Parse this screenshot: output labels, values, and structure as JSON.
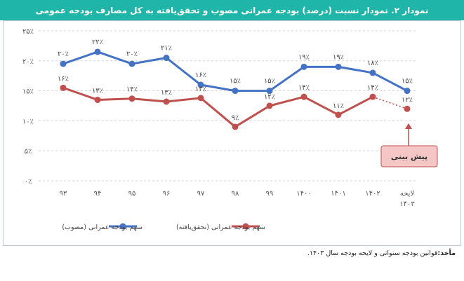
{
  "title": "نمودار ۲. نمودار نسبت (درصد) بودجه عمرانی مصوب و تحقق‌یافته به کل مصارف بودجه عمومی",
  "callout": "پیش بینی",
  "source": {
    "label": "مأخذ:",
    "text": "قوانین بودجه سنواتی و لایحه بودجه سال ۱۴۰۳."
  },
  "colors": {
    "approved": "#4472c4",
    "realized": "#c0504d",
    "header": "#1fb5a8",
    "callout_fill": "#f4c6c6"
  },
  "chart_data": {
    "type": "line",
    "title": "نمودار ۲. نمودار نسبت (درصد) بودجه عمرانی مصوب و تحقق‌یافته به کل مصارف بودجه عمومی",
    "categories": [
      "۹۳",
      "۹۴",
      "۹۵",
      "۹۶",
      "۹۷",
      "۹۸",
      "۹۹",
      "۱۴۰۰",
      "۱۴۰۱",
      "۱۴۰۲",
      "لایحه ۱۴۰۳"
    ],
    "ylim": [
      0,
      25
    ],
    "yticks": [
      0,
      5,
      10,
      15,
      20,
      25
    ],
    "ytick_labels": [
      "۰٪",
      "۵٪",
      "۱۰٪",
      "۱۵٪",
      "۲۰٪",
      "۲۵٪"
    ],
    "series": [
      {
        "name": "سهم بودجه عمرانی (مصوب)",
        "values": [
          19.5,
          21.5,
          19.5,
          20.5,
          16.0,
          15.0,
          15.0,
          19.0,
          19.0,
          18.0,
          15.0
        ],
        "labels": [
          "۲۰٪",
          "۲۲٪",
          "۲۰٪",
          "۲۱٪",
          "۱۶٪",
          "۱۵٪",
          "۱۵٪",
          "۱۹٪",
          "۱۹٪",
          "۱۸٪",
          "۱۵٪"
        ]
      },
      {
        "name": "سهم بودجه عمرانی (تحقق‌یافته)",
        "values": [
          15.5,
          13.5,
          13.7,
          13.2,
          13.8,
          9.0,
          12.5,
          14.0,
          11.0,
          14.0,
          12.0
        ],
        "labels": [
          "۱۶٪",
          "۱۳٪",
          "۱۴٪",
          "۱۳٪",
          "۱۴٪",
          "۹٪",
          "۱۲٪",
          "۱۴٪",
          "۱۱٪",
          "۱۴٪",
          "۱۲٪"
        ],
        "forecast_last_dotted": true
      }
    ]
  }
}
